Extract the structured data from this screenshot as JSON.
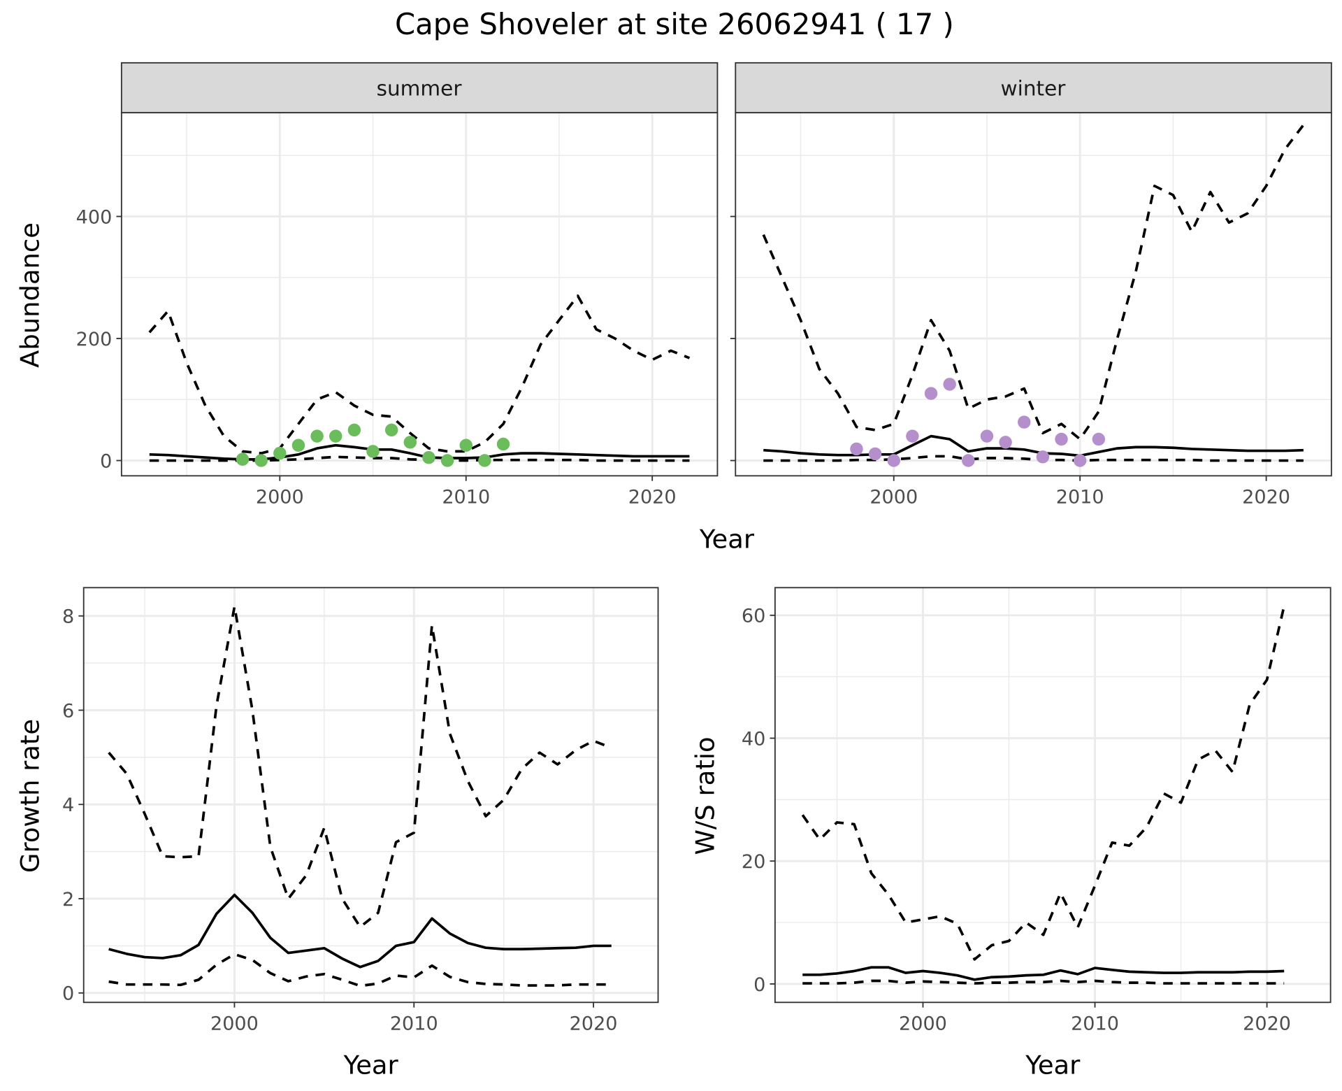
{
  "title": "Cape Shoveler at site 26062941 ( 17 )",
  "colors": {
    "summer": "#6abd5a",
    "winter": "#b48fcb",
    "line": "#000000"
  },
  "chart_data": [
    {
      "type": "line",
      "panel": "summer",
      "strip": "summer",
      "xlabel": "Year",
      "ylabel": "Abundance",
      "xlim": [
        1991.5,
        2023.5
      ],
      "ylim": [
        -25,
        570
      ],
      "xticks": [
        2000,
        2010,
        2020
      ],
      "yticks": [
        0,
        200,
        400
      ],
      "x": [
        1993,
        1994,
        1995,
        1996,
        1997,
        1998,
        1999,
        2000,
        2001,
        2002,
        2003,
        2004,
        2005,
        2006,
        2007,
        2008,
        2009,
        2010,
        2011,
        2012,
        2013,
        2014,
        2015,
        2016,
        2017,
        2018,
        2019,
        2020,
        2021,
        2022
      ],
      "series": [
        {
          "name": "mean",
          "style": "solid",
          "values": [
            10,
            9,
            7,
            5,
            3,
            2,
            2,
            5,
            10,
            20,
            25,
            22,
            18,
            18,
            12,
            5,
            4,
            4,
            5,
            10,
            12,
            12,
            11,
            10,
            9,
            8,
            7,
            7,
            7,
            7
          ]
        },
        {
          "name": "upper",
          "style": "dashed",
          "values": [
            210,
            245,
            160,
            90,
            40,
            15,
            12,
            20,
            60,
            100,
            112,
            90,
            75,
            72,
            45,
            20,
            15,
            15,
            30,
            60,
            120,
            190,
            230,
            270,
            215,
            200,
            180,
            165,
            180,
            168
          ]
        },
        {
          "name": "lower",
          "style": "dashed",
          "values": [
            0,
            0,
            0,
            0,
            0,
            0,
            0,
            1,
            2,
            4,
            6,
            5,
            4,
            4,
            2,
            1,
            0,
            0,
            1,
            1,
            1,
            1,
            1,
            1,
            0,
            0,
            0,
            0,
            0,
            0
          ]
        }
      ],
      "points": {
        "x": [
          1998,
          1999,
          2000,
          2001,
          2002,
          2003,
          2004,
          2005,
          2006,
          2007,
          2008,
          2009,
          2010,
          2011,
          2012
        ],
        "y": [
          2,
          0,
          12,
          25,
          40,
          40,
          50,
          15,
          50,
          30,
          5,
          0,
          25,
          0,
          27
        ]
      }
    },
    {
      "type": "line",
      "panel": "winter",
      "strip": "winter",
      "xlabel": "Year",
      "ylabel": "Abundance",
      "xlim": [
        1991.5,
        2023.5
      ],
      "ylim": [
        -25,
        570
      ],
      "xticks": [
        2000,
        2010,
        2020
      ],
      "yticks": [
        0,
        200,
        400
      ],
      "x": [
        1993,
        1994,
        1995,
        1996,
        1997,
        1998,
        1999,
        2000,
        2001,
        2002,
        2003,
        2004,
        2005,
        2006,
        2007,
        2008,
        2009,
        2010,
        2011,
        2012,
        2013,
        2014,
        2015,
        2016,
        2017,
        2018,
        2019,
        2020,
        2021,
        2022
      ],
      "series": [
        {
          "name": "mean",
          "style": "solid",
          "values": [
            17,
            15,
            12,
            10,
            9,
            9,
            10,
            10,
            25,
            40,
            35,
            15,
            20,
            20,
            18,
            12,
            11,
            8,
            14,
            20,
            22,
            22,
            21,
            19,
            18,
            17,
            16,
            16,
            16,
            17
          ]
        },
        {
          "name": "upper",
          "style": "dashed",
          "values": [
            370,
            300,
            230,
            150,
            110,
            55,
            50,
            60,
            140,
            230,
            180,
            85,
            100,
            105,
            118,
            45,
            60,
            35,
            80,
            200,
            310,
            450,
            435,
            375,
            440,
            390,
            405,
            450,
            510,
            550
          ]
        },
        {
          "name": "lower",
          "style": "dashed",
          "values": [
            0,
            0,
            0,
            0,
            0,
            1,
            1,
            2,
            4,
            7,
            7,
            2,
            4,
            4,
            3,
            1,
            1,
            0,
            1,
            1,
            1,
            1,
            1,
            1,
            0,
            0,
            0,
            0,
            0,
            0
          ]
        }
      ],
      "points": {
        "x": [
          1998,
          1999,
          2000,
          2001,
          2002,
          2003,
          2004,
          2005,
          2006,
          2007,
          2008,
          2009,
          2010,
          2011
        ],
        "y": [
          19,
          11,
          0,
          40,
          110,
          125,
          0,
          40,
          30,
          63,
          6,
          35,
          0,
          35
        ]
      }
    },
    {
      "type": "line",
      "panel": "growth",
      "xlabel": "Year",
      "ylabel": "Growth rate",
      "xlim": [
        1991.6,
        2023.6
      ],
      "ylim": [
        -0.2,
        8.6
      ],
      "xticks": [
        2000,
        2010,
        2020
      ],
      "yticks": [
        0,
        2,
        4,
        6,
        8
      ],
      "x": [
        1993,
        1994,
        1995,
        1996,
        1997,
        1998,
        1999,
        2000,
        2001,
        2002,
        2003,
        2004,
        2005,
        2006,
        2007,
        2008,
        2009,
        2010,
        2011,
        2012,
        2013,
        2014,
        2015,
        2016,
        2017,
        2018,
        2019,
        2020,
        2021
      ],
      "series": [
        {
          "name": "mean",
          "style": "solid",
          "values": [
            0.93,
            0.83,
            0.76,
            0.74,
            0.8,
            1.02,
            1.68,
            2.08,
            1.7,
            1.17,
            0.85,
            0.9,
            0.95,
            0.73,
            0.55,
            0.68,
            1.0,
            1.08,
            1.58,
            1.26,
            1.06,
            0.96,
            0.93,
            0.93,
            0.94,
            0.95,
            0.96,
            1.0,
            1.0
          ]
        },
        {
          "name": "upper",
          "style": "dashed",
          "values": [
            5.1,
            4.65,
            3.8,
            2.9,
            2.88,
            2.9,
            6.1,
            8.2,
            6.0,
            3.1,
            2.0,
            2.5,
            3.5,
            2.0,
            1.4,
            1.7,
            3.2,
            3.4,
            7.8,
            5.5,
            4.5,
            3.75,
            4.1,
            4.75,
            5.1,
            4.85,
            5.15,
            5.35,
            5.2
          ]
        },
        {
          "name": "lower",
          "style": "dashed",
          "values": [
            0.24,
            0.18,
            0.18,
            0.18,
            0.17,
            0.28,
            0.6,
            0.82,
            0.7,
            0.42,
            0.25,
            0.35,
            0.4,
            0.28,
            0.15,
            0.2,
            0.37,
            0.33,
            0.58,
            0.34,
            0.23,
            0.19,
            0.18,
            0.16,
            0.16,
            0.16,
            0.18,
            0.18,
            0.18
          ]
        }
      ]
    },
    {
      "type": "line",
      "panel": "ratio",
      "xlabel": "Year",
      "ylabel": "W/S ratio",
      "xlim": [
        1991.4,
        2023.7
      ],
      "ylim": [
        -3,
        64.5
      ],
      "xticks": [
        2000,
        2010,
        2020
      ],
      "yticks": [
        0,
        20,
        40,
        60
      ],
      "x": [
        1993,
        1994,
        1995,
        1996,
        1997,
        1998,
        1999,
        2000,
        2001,
        2002,
        2003,
        2004,
        2005,
        2006,
        2007,
        2008,
        2009,
        2010,
        2011,
        2012,
        2013,
        2014,
        2015,
        2016,
        2017,
        2018,
        2019,
        2020,
        2021
      ],
      "series": [
        {
          "name": "mean",
          "style": "solid",
          "values": [
            1.5,
            1.5,
            1.7,
            2.1,
            2.7,
            2.7,
            1.8,
            2.1,
            1.8,
            1.4,
            0.7,
            1.1,
            1.2,
            1.4,
            1.5,
            2.2,
            1.6,
            2.6,
            2.3,
            2.0,
            1.9,
            1.8,
            1.8,
            1.9,
            1.9,
            1.9,
            2.0,
            2.0,
            2.1
          ]
        },
        {
          "name": "upper",
          "style": "dashed",
          "values": [
            27.5,
            23.5,
            26.3,
            26,
            18,
            14.5,
            10,
            10.5,
            11,
            9.8,
            4,
            6.3,
            7,
            10,
            8,
            14.8,
            9.2,
            16,
            23,
            22.5,
            25.5,
            31,
            29.5,
            36.5,
            38,
            34.5,
            45.5,
            49.5,
            61.5
          ]
        },
        {
          "name": "lower",
          "style": "dashed",
          "values": [
            0.1,
            0.1,
            0.1,
            0.2,
            0.5,
            0.5,
            0.2,
            0.4,
            0.3,
            0.2,
            0.1,
            0.2,
            0.2,
            0.3,
            0.3,
            0.5,
            0.3,
            0.5,
            0.3,
            0.2,
            0.2,
            0.1,
            0.1,
            0.1,
            0.1,
            0.1,
            0.1,
            0.1,
            0.1
          ]
        }
      ]
    }
  ]
}
